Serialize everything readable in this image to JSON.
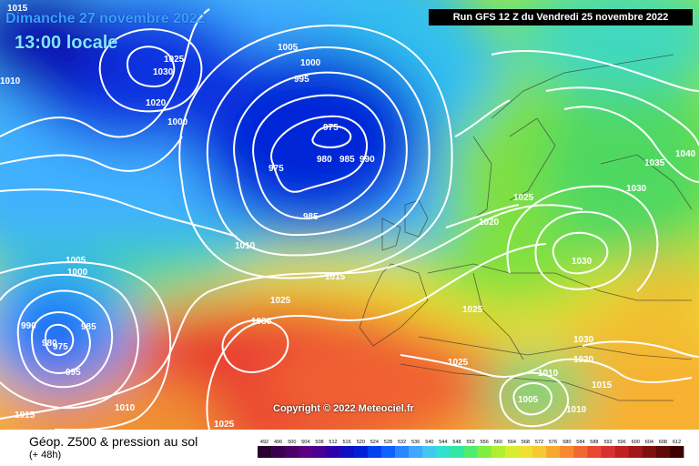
{
  "header": {
    "date_line": "Dimanche 27 novembre 2022",
    "time_line": "13:00 locale",
    "run_info": "Run GFS 12 Z du Vendredi 25 novembre 2022"
  },
  "copyright": "Copyright © 2022 Meteociel.fr",
  "footer": {
    "title": "Géop. Z500 & pression au sol",
    "subtitle": "(+ 48h)"
  },
  "legend": {
    "values": [
      "492",
      "496",
      "500",
      "504",
      "508",
      "512",
      "516",
      "520",
      "524",
      "528",
      "532",
      "536",
      "540",
      "544",
      "548",
      "552",
      "556",
      "560",
      "564",
      "568",
      "572",
      "576",
      "580",
      "584",
      "588",
      "592",
      "596",
      "600",
      "604",
      "608",
      "612"
    ],
    "colors": [
      "#2a0030",
      "#3a0050",
      "#4a0068",
      "#5a0080",
      "#4a0090",
      "#3000a8",
      "#1010c0",
      "#0020d8",
      "#0040f0",
      "#1060ff",
      "#2a86ff",
      "#40a8ff",
      "#40c8f0",
      "#30e0d0",
      "#30e8a0",
      "#50ec70",
      "#80ee40",
      "#b0ee30",
      "#d8ec30",
      "#f0e030",
      "#f8c830",
      "#f8a830",
      "#f88830",
      "#f06830",
      "#e84830",
      "#d83030",
      "#c02020",
      "#a01818",
      "#801010",
      "#600808",
      "#400000"
    ]
  },
  "pressure_labels": [
    "1015",
    "1005",
    "1030",
    "1025",
    "1020",
    "1010",
    "1000",
    "995",
    "1000",
    "975",
    "975",
    "980",
    "985",
    "990",
    "985",
    "1010",
    "1015",
    "1025",
    "1030",
    "1005",
    "1000",
    "990",
    "985",
    "980",
    "975",
    "995",
    "1010",
    "1015",
    "1025",
    "1025",
    "1020",
    "1025",
    "1030",
    "1035",
    "1040",
    "1030",
    "1030",
    "1020",
    "1025",
    "1010",
    "1015",
    "1005",
    "1010"
  ],
  "colors": {
    "isobar": "#ffffff",
    "run_box_bg": "#000000",
    "title_blue": "#3aa0ff",
    "title_cyan": "#7fe4ff"
  }
}
